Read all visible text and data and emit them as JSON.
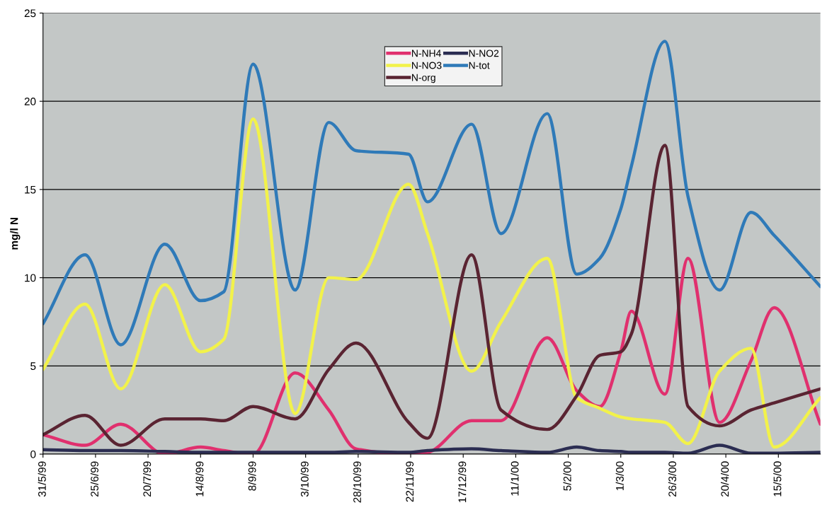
{
  "chart_data": {
    "type": "line",
    "ylabel": "mg/l N",
    "x": [
      "1999-05-31",
      "1999-06-20",
      "1999-07-07",
      "1999-07-28",
      "1999-08-14",
      "1999-08-25",
      "1999-09-08",
      "1999-09-28",
      "1999-10-14",
      "1999-10-27",
      "1999-11-21",
      "1999-11-30",
      "1999-12-21",
      "2000-01-04",
      "2000-01-26",
      "2000-02-09",
      "2000-02-20",
      "2000-03-01",
      "2000-03-06",
      "2000-03-22",
      "2000-04-02",
      "2000-04-17",
      "2000-05-02",
      "2000-05-13",
      "2000-06-04"
    ],
    "series": [
      {
        "name": "N-NH4",
        "color": "#e0306e",
        "values": [
          1.1,
          0.5,
          1.7,
          0.0,
          0.4,
          0.2,
          0.0,
          4.6,
          2.5,
          0.3,
          0.0,
          0.1,
          1.9,
          1.9,
          6.6,
          3.6,
          2.7,
          5.8,
          8.1,
          3.4,
          11.1,
          1.8,
          5.3,
          8.3,
          1.7
        ]
      },
      {
        "name": "N-NO3",
        "color": "#f2f24a",
        "values": [
          4.8,
          8.5,
          3.7,
          9.6,
          5.8,
          6.5,
          19.0,
          2.3,
          10.0,
          9.9,
          15.3,
          12.5,
          4.7,
          7.5,
          11.1,
          3.2,
          2.6,
          2.1,
          2.0,
          1.8,
          0.6,
          4.7,
          6.0,
          0.4,
          3.2
        ]
      },
      {
        "name": "N-org",
        "color": "#5a2432",
        "values": [
          1.1,
          2.2,
          0.5,
          2.0,
          2.0,
          1.9,
          2.7,
          2.0,
          4.8,
          6.3,
          1.8,
          0.9,
          11.3,
          2.5,
          1.4,
          3.3,
          5.6,
          5.8,
          6.8,
          17.5,
          2.7,
          1.6,
          2.5,
          2.9,
          3.7
        ]
      },
      {
        "name": "N-NO2",
        "color": "#2b2d52",
        "values": [
          0.25,
          0.2,
          0.2,
          0.15,
          0.1,
          0.1,
          0.1,
          0.1,
          0.1,
          0.15,
          0.1,
          0.2,
          0.3,
          0.2,
          0.1,
          0.4,
          0.2,
          0.15,
          0.1,
          0.1,
          0.05,
          0.5,
          0.05,
          0.05,
          0.1
        ]
      },
      {
        "name": "N-tot",
        "color": "#2f7ab8",
        "values": [
          7.4,
          11.3,
          6.2,
          11.9,
          8.7,
          9.2,
          22.1,
          9.3,
          18.8,
          17.2,
          17.0,
          14.3,
          18.7,
          12.5,
          19.3,
          10.2,
          11.1,
          13.9,
          16.3,
          23.4,
          14.6,
          9.3,
          13.7,
          12.4,
          9.5
        ]
      }
    ],
    "xlim": [
      "1999-05-31",
      "2000-06-04"
    ],
    "xticks": [
      {
        "value": "1999-05-31",
        "label": "31/5/99"
      },
      {
        "value": "1999-06-25",
        "label": "25/6/99"
      },
      {
        "value": "1999-07-20",
        "label": "20/7/99"
      },
      {
        "value": "1999-08-14",
        "label": "14/8/99"
      },
      {
        "value": "1999-09-08",
        "label": "8/9/99"
      },
      {
        "value": "1999-10-03",
        "label": "3/10/99"
      },
      {
        "value": "1999-10-28",
        "label": "28/10/99"
      },
      {
        "value": "1999-11-22",
        "label": "22/11/99"
      },
      {
        "value": "1999-12-17",
        "label": "17/12/99"
      },
      {
        "value": "2000-01-11",
        "label": "11/1/00"
      },
      {
        "value": "2000-02-05",
        "label": "5/2/00"
      },
      {
        "value": "2000-03-01",
        "label": "1/3/00"
      },
      {
        "value": "2000-03-26",
        "label": "26/3/00"
      },
      {
        "value": "2000-04-20",
        "label": "20/4/00"
      },
      {
        "value": "2000-05-15",
        "label": "15/5/00"
      }
    ],
    "ylim": [
      0,
      25
    ],
    "yticks": [
      0,
      5,
      10,
      15,
      20,
      25
    ],
    "grid": "y",
    "legend": "top",
    "marker": "none",
    "line_style": "solid"
  }
}
